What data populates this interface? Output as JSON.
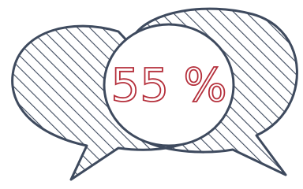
{
  "label": "55 %"
}
